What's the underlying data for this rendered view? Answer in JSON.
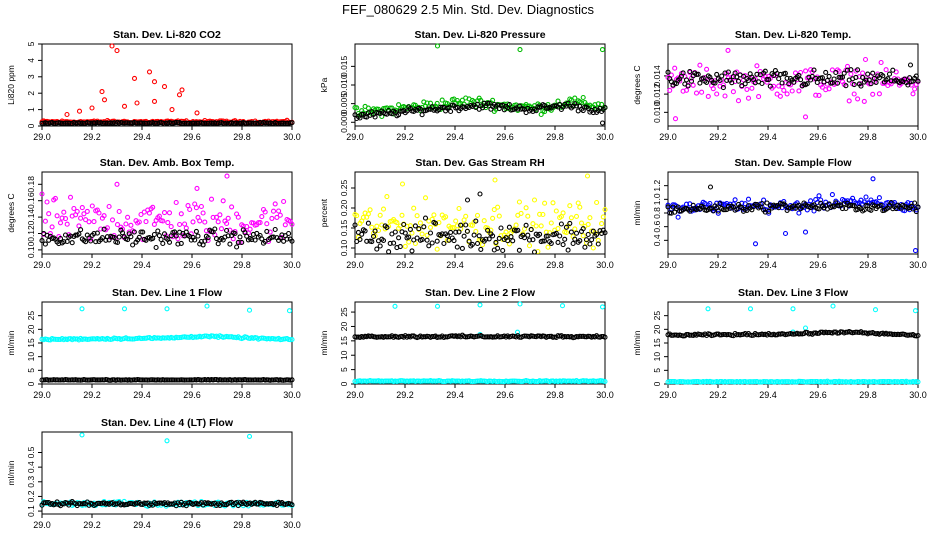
{
  "page_title": "FEF_080629  2.5 Min. Std. Dev. Diagnostics",
  "colors": {
    "black": "#000000",
    "red": "#ff0000",
    "green": "#00bb00",
    "magenta": "#ff00ff",
    "yellow": "#ffff00",
    "blue": "#0000ff",
    "cyan": "#00ffff"
  },
  "chart_data": [
    {
      "type": "scatter",
      "title": "Stan. Dev. Li-820 CO2",
      "ylabel": "Li820 ppm",
      "xlabel": "",
      "xlim": [
        29.0,
        30.0
      ],
      "ylim": [
        0,
        5
      ],
      "xticks": [
        "29.0",
        "29.2",
        "29.4",
        "29.6",
        "29.8",
        "30.0"
      ],
      "yticks": [
        "0",
        "1",
        "2",
        "3",
        "4",
        "5"
      ],
      "grid": false,
      "series": [
        {
          "color": "red",
          "base": 0.25,
          "noise": 0.06,
          "spikes": [
            [
              29.28,
              5.0
            ],
            [
              29.3,
              4.6
            ],
            [
              29.24,
              2.1
            ],
            [
              29.25,
              1.6
            ],
            [
              29.37,
              2.9
            ],
            [
              29.43,
              3.3
            ],
            [
              29.45,
              2.7
            ],
            [
              29.49,
              2.4
            ],
            [
              29.55,
              1.9
            ],
            [
              29.56,
              2.2
            ],
            [
              29.38,
              1.4
            ],
            [
              29.2,
              1.1
            ],
            [
              29.33,
              1.2
            ],
            [
              29.45,
              1.5
            ],
            [
              29.52,
              1.0
            ],
            [
              29.15,
              0.9
            ],
            [
              29.62,
              0.8
            ],
            [
              29.1,
              0.7
            ]
          ]
        },
        {
          "color": "black",
          "base": 0.18,
          "noise": 0.03,
          "spikes": []
        }
      ]
    },
    {
      "type": "scatter",
      "title": "Stan. Dev. Li-820 Pressure",
      "ylabel": "kPa",
      "xlabel": "",
      "xlim": [
        29.0,
        30.0
      ],
      "ylim": [
        -0.001,
        0.021
      ],
      "xticks": [
        "29.0",
        "29.2",
        "29.4",
        "29.6",
        "29.8",
        "30.0"
      ],
      "yticks": [
        "0.000",
        "0.005",
        "0.010",
        "0.015"
      ],
      "grid": false,
      "series": [
        {
          "color": "green",
          "curve": [
            [
              29.0,
              0.0025
            ],
            [
              29.2,
              0.0038
            ],
            [
              29.45,
              0.0055
            ],
            [
              29.6,
              0.0045
            ],
            [
              29.75,
              0.0038
            ],
            [
              29.85,
              0.0055
            ],
            [
              30.0,
              0.0042
            ]
          ],
          "noise": 0.0012,
          "spikes": [
            [
              29.33,
              0.0205
            ],
            [
              29.66,
              0.0195
            ],
            [
              29.99,
              0.0195
            ]
          ]
        },
        {
          "color": "black",
          "curve": [
            [
              29.0,
              0.0015
            ],
            [
              29.3,
              0.0035
            ],
            [
              29.5,
              0.0045
            ],
            [
              29.7,
              0.0035
            ],
            [
              29.85,
              0.0045
            ],
            [
              30.0,
              0.003
            ]
          ],
          "noise": 0.0008,
          "spikes": [
            [
              29.99,
              -0.0002
            ]
          ]
        }
      ]
    },
    {
      "type": "scatter",
      "title": "Stan. Dev. Li-820 Temp.",
      "ylabel": "degrees C",
      "xlabel": "",
      "xlim": [
        29.0,
        30.0
      ],
      "ylim": [
        0.0085,
        0.0175
      ],
      "xticks": [
        "29.0",
        "29.2",
        "29.4",
        "29.6",
        "29.8",
        "30.0"
      ],
      "yticks": [
        "0.010",
        "0.012",
        "0.014"
      ],
      "grid": false,
      "series": [
        {
          "color": "magenta",
          "base": 0.0133,
          "noise": 0.0014,
          "spikes": [
            [
              29.24,
              0.0168
            ],
            [
              29.03,
              0.0093
            ],
            [
              29.55,
              0.0095
            ],
            [
              29.79,
              0.0158
            ]
          ]
        },
        {
          "color": "black",
          "base": 0.0136,
          "noise": 0.0008,
          "spikes": [
            [
              29.97,
              0.0152
            ]
          ]
        }
      ]
    },
    {
      "type": "scatter",
      "title": "Stan. Dev. Amb. Box Temp.",
      "ylabel": "degrees C",
      "xlabel": "",
      "xlim": [
        29.0,
        30.0
      ],
      "ylim": [
        0.095,
        0.195
      ],
      "xticks": [
        "29.0",
        "29.2",
        "29.4",
        "29.6",
        "29.8",
        "30.0"
      ],
      "yticks": [
        "0.10",
        "0.12",
        "0.14",
        "0.16",
        "0.18"
      ],
      "grid": false,
      "series": [
        {
          "color": "magenta",
          "base": 0.135,
          "noise": 0.022,
          "spikes": [
            [
              29.74,
              0.19
            ],
            [
              29.3,
              0.18
            ],
            [
              29.62,
              0.175
            ]
          ]
        },
        {
          "color": "black",
          "base": 0.115,
          "noise": 0.008,
          "spikes": []
        }
      ]
    },
    {
      "type": "scatter",
      "title": "Stan. Dev. Gas Stream RH",
      "ylabel": "percent",
      "xlabel": "",
      "xlim": [
        29.0,
        30.0
      ],
      "ylim": [
        0.085,
        0.29
      ],
      "xticks": [
        "29.0",
        "29.2",
        "29.4",
        "29.6",
        "29.8",
        "30.0"
      ],
      "yticks": [
        "0.10",
        "0.15",
        "0.20",
        "0.25"
      ],
      "grid": false,
      "series": [
        {
          "color": "yellow",
          "base": 0.16,
          "noise": 0.045,
          "spikes": [
            [
              29.93,
              0.28
            ],
            [
              29.56,
              0.27
            ],
            [
              29.19,
              0.26
            ]
          ]
        },
        {
          "color": "black",
          "base": 0.13,
          "noise": 0.03,
          "spikes": [
            [
              29.5,
              0.235
            ],
            [
              29.45,
              0.22
            ]
          ]
        }
      ]
    },
    {
      "type": "scatter",
      "title": "Stan. Dev. Sample Flow",
      "ylabel": "ml/min",
      "xlabel": "",
      "xlim": [
        29.0,
        30.0
      ],
      "ylim": [
        0.2,
        1.4
      ],
      "xticks": [
        "29.0",
        "29.2",
        "29.4",
        "29.6",
        "29.8",
        "30.0"
      ],
      "yticks": [
        "0.4",
        "0.6",
        "0.8",
        "1.0",
        "1.2"
      ],
      "grid": false,
      "series": [
        {
          "color": "blue",
          "curve": [
            [
              29.0,
              0.85
            ],
            [
              29.3,
              0.92
            ],
            [
              29.5,
              0.88
            ],
            [
              29.7,
              0.98
            ],
            [
              29.85,
              0.92
            ],
            [
              30.0,
              0.88
            ]
          ],
          "noise": 0.08,
          "spikes": [
            [
              29.82,
              1.3
            ],
            [
              29.99,
              0.25
            ],
            [
              29.35,
              0.35
            ],
            [
              29.47,
              0.5
            ],
            [
              29.55,
              0.52
            ]
          ]
        },
        {
          "color": "black",
          "curve": [
            [
              29.0,
              0.85
            ],
            [
              29.5,
              0.9
            ],
            [
              30.0,
              0.88
            ]
          ],
          "noise": 0.05,
          "spikes": [
            [
              29.17,
              1.18
            ]
          ]
        }
      ]
    },
    {
      "type": "scatter",
      "title": "Stan. Dev. Line 1 Flow",
      "ylabel": "ml/min",
      "xlabel": "",
      "xlim": [
        29.0,
        30.0
      ],
      "ylim": [
        0,
        30
      ],
      "xticks": [
        "29.0",
        "29.2",
        "29.4",
        "29.6",
        "29.8",
        "30.0"
      ],
      "yticks": [
        "0",
        "5",
        "10",
        "15",
        "20",
        "25"
      ],
      "grid": false,
      "series": [
        {
          "color": "cyan",
          "curve": [
            [
              29.0,
              16.3
            ],
            [
              29.5,
              16.8
            ],
            [
              29.65,
              17.5
            ],
            [
              30.0,
              16.2
            ]
          ],
          "noise": 0.25,
          "spikes": [
            [
              29.16,
              27.5
            ],
            [
              29.33,
              27.5
            ],
            [
              29.5,
              27.5
            ],
            [
              29.66,
              28.5
            ],
            [
              29.83,
              27.0
            ],
            [
              29.99,
              26.8
            ]
          ]
        },
        {
          "color": "black",
          "base": 1.5,
          "noise": 0.1,
          "spikes": []
        }
      ]
    },
    {
      "type": "scatter",
      "title": "Stan. Dev. Line 2 Flow",
      "ylabel": "ml/min",
      "xlabel": "",
      "xlim": [
        29.0,
        30.0
      ],
      "ylim": [
        0,
        28.5
      ],
      "xticks": [
        "29.0",
        "29.2",
        "29.4",
        "29.6",
        "29.8",
        "30.0"
      ],
      "yticks": [
        "0",
        "5",
        "10",
        "15",
        "20",
        "25"
      ],
      "grid": false,
      "series": [
        {
          "color": "cyan",
          "base": 1.0,
          "noise": 0.15,
          "spikes": [
            [
              29.16,
              27.0
            ],
            [
              29.33,
              27.0
            ],
            [
              29.5,
              27.5
            ],
            [
              29.66,
              27.8
            ],
            [
              29.83,
              27.2
            ],
            [
              29.99,
              26.8
            ],
            [
              29.65,
              18.0
            ],
            [
              29.5,
              17.2
            ]
          ]
        },
        {
          "color": "black",
          "base": 16.5,
          "noise": 0.3,
          "spikes": []
        }
      ]
    },
    {
      "type": "scatter",
      "title": "Stan. Dev. Line 3 Flow",
      "ylabel": "ml/min",
      "xlabel": "",
      "xlim": [
        29.0,
        30.0
      ],
      "ylim": [
        0,
        30
      ],
      "xticks": [
        "29.0",
        "29.2",
        "29.4",
        "29.6",
        "29.8",
        "30.0"
      ],
      "yticks": [
        "0",
        "5",
        "10",
        "15",
        "20",
        "25"
      ],
      "grid": false,
      "series": [
        {
          "color": "cyan",
          "base": 0.8,
          "noise": 0.15,
          "spikes": [
            [
              29.16,
              27.5
            ],
            [
              29.33,
              27.5
            ],
            [
              29.5,
              27.5
            ],
            [
              29.66,
              28.5
            ],
            [
              29.83,
              27.2
            ],
            [
              29.99,
              26.8
            ],
            [
              29.55,
              20.5
            ],
            [
              29.5,
              19.0
            ]
          ]
        },
        {
          "color": "black",
          "curve": [
            [
              29.0,
              17.8
            ],
            [
              29.5,
              18.3
            ],
            [
              29.7,
              19.0
            ],
            [
              30.0,
              17.8
            ]
          ],
          "noise": 0.3,
          "spikes": []
        }
      ]
    },
    {
      "type": "scatter",
      "title": "Stan. Dev. Line 4 (LT) Flow",
      "ylabel": "ml/min",
      "xlabel": "",
      "xlim": [
        29.0,
        30.0
      ],
      "ylim": [
        0.08,
        0.64
      ],
      "xticks": [
        "29.0",
        "29.2",
        "29.4",
        "29.6",
        "29.8",
        "30.0"
      ],
      "yticks": [
        "0.1",
        "0.2",
        "0.3",
        "0.4",
        "0.5"
      ],
      "grid": false,
      "series": [
        {
          "color": "cyan",
          "base": 0.15,
          "noise": 0.012,
          "spikes": [
            [
              29.16,
              0.62
            ],
            [
              29.5,
              0.58
            ],
            [
              29.83,
              0.61
            ]
          ]
        },
        {
          "color": "black",
          "base": 0.15,
          "noise": 0.01,
          "spikes": []
        }
      ]
    }
  ]
}
